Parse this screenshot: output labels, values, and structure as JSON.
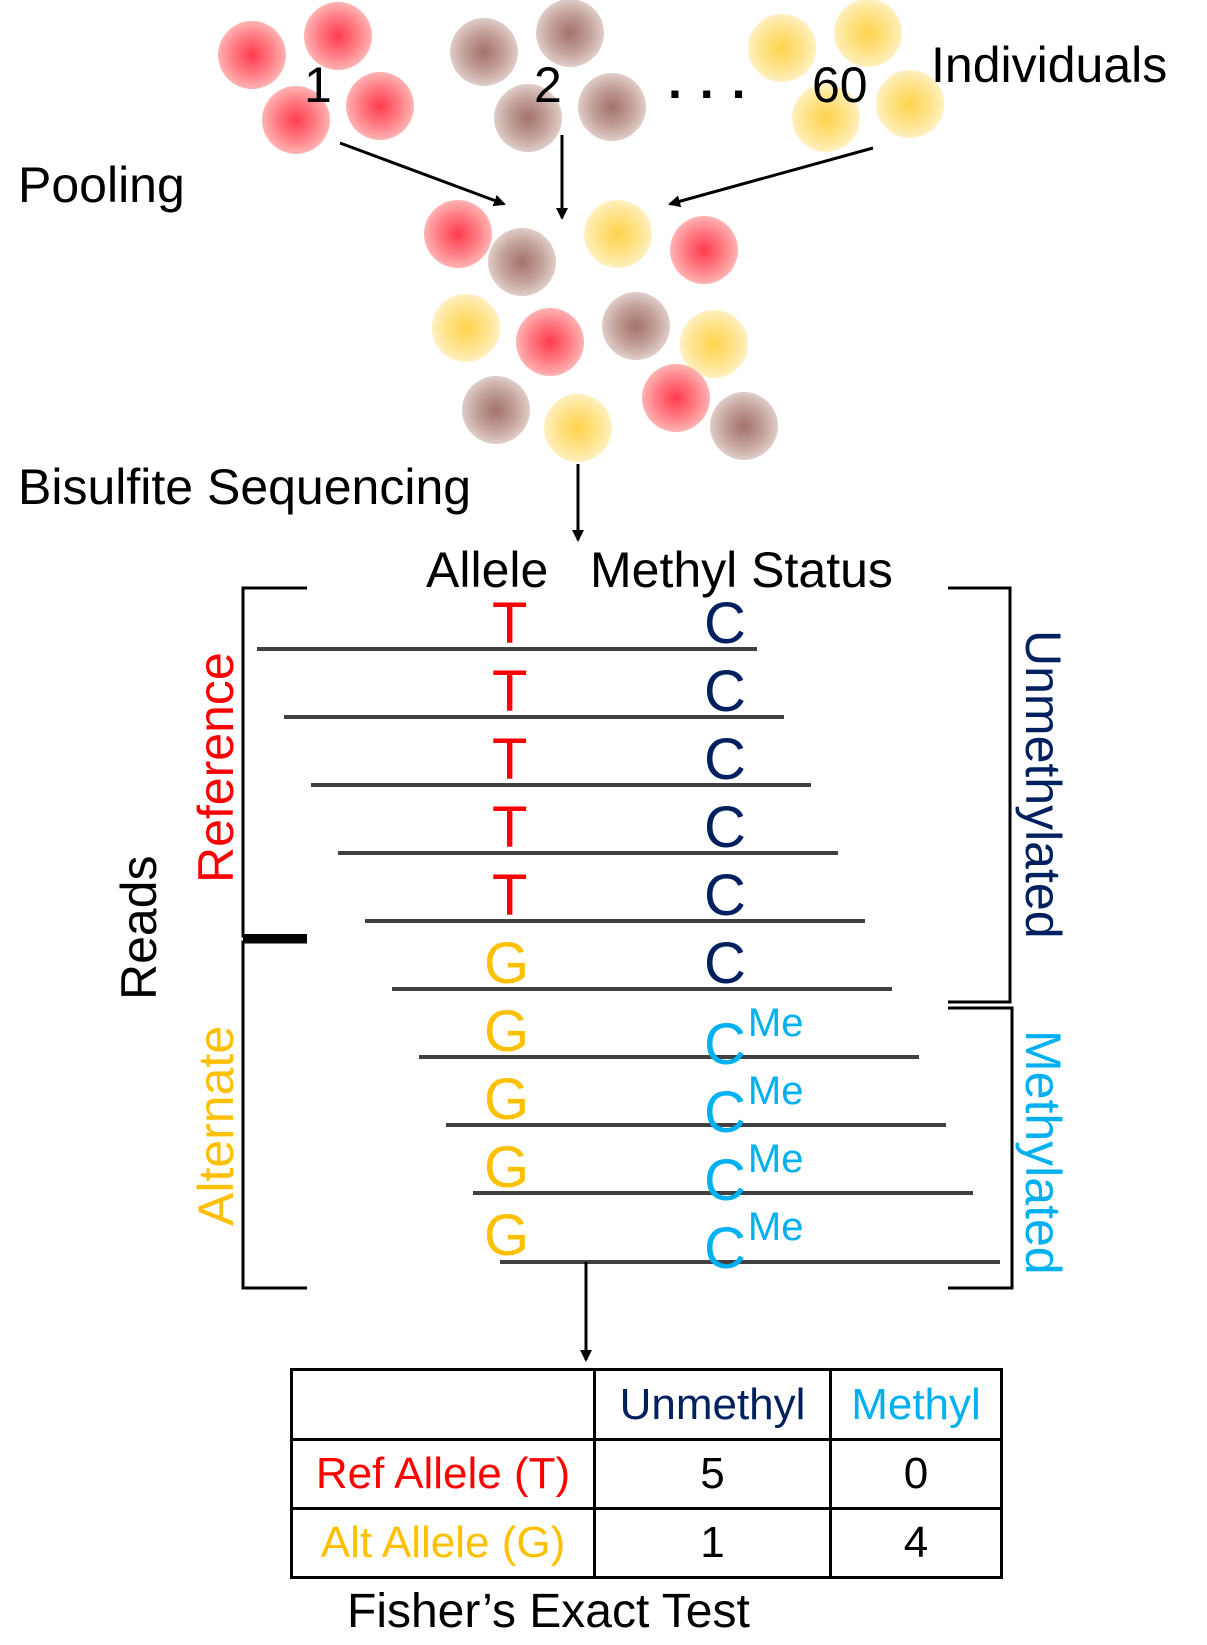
{
  "labels": {
    "individuals": "Individuals",
    "pooling": "Pooling",
    "bisulfite": "Bisulfite Sequencing",
    "allele_header": "Allele",
    "methyl_header": "Methyl Status",
    "reads": "Reads",
    "reference": "Reference",
    "alternate": "Alternate",
    "unmethylated": "Unmethylated",
    "methylated": "Methylated",
    "ellipsis": ". . .",
    "fisher": "Fisher’s Exact Test"
  },
  "individuals": [
    {
      "id": "1",
      "color": "#ff6b6b"
    },
    {
      "id": "2",
      "color": "#b58b82"
    },
    {
      "id": "60",
      "color": "#ffd75e"
    }
  ],
  "reads": [
    {
      "allele": "T",
      "status": "C",
      "methylated": false
    },
    {
      "allele": "T",
      "status": "C",
      "methylated": false
    },
    {
      "allele": "T",
      "status": "C",
      "methylated": false
    },
    {
      "allele": "T",
      "status": "C",
      "methylated": false
    },
    {
      "allele": "T",
      "status": "C",
      "methylated": false
    },
    {
      "allele": "G",
      "status": "C",
      "methylated": false
    },
    {
      "allele": "G",
      "status": "C",
      "methylated": true
    },
    {
      "allele": "G",
      "status": "C",
      "methylated": true
    },
    {
      "allele": "G",
      "status": "C",
      "methylated": true
    },
    {
      "allele": "G",
      "status": "C",
      "methylated": true
    }
  ],
  "methyl_superscript": "Me",
  "table": {
    "col_unmethyl": "Unmethyl",
    "col_methyl": "Methyl",
    "row_ref": "Ref Allele (T)",
    "row_alt": "Alt Allele (G)",
    "ref_unmethyl": "5",
    "ref_methyl": "0",
    "alt_unmethyl": "1",
    "alt_methyl": "4"
  },
  "colors": {
    "reference": "#ff0000",
    "alternate": "#ffc000",
    "unmethylated": "#002060",
    "methylated": "#00b0f0",
    "pink_cell": "#ff6b6b",
    "brown_cell": "#b58b82",
    "yellow_cell": "#ffd75e"
  }
}
